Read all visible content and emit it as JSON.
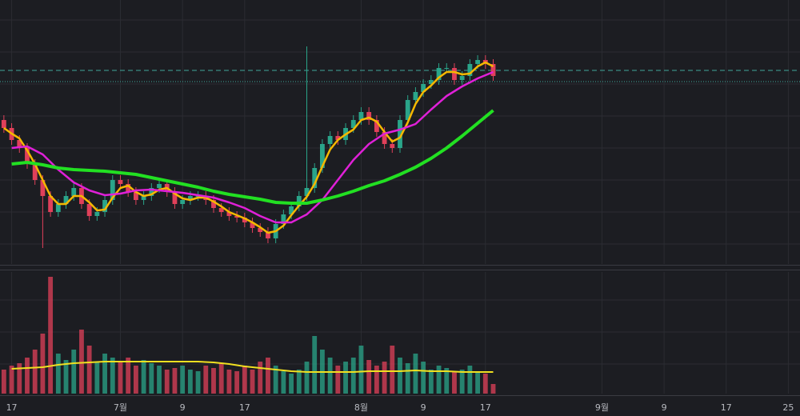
{
  "chart_data": [
    {
      "type": "candlestick",
      "grid": true,
      "up_color": "#2aa58a",
      "down_color": "#e0405a",
      "ylim": [
        0,
        330
      ],
      "grid_y": [
        305,
        265,
        225,
        185,
        145,
        105,
        65,
        25
      ],
      "x": [
        -1,
        0,
        1,
        2,
        3,
        4,
        5,
        6,
        7,
        8,
        9,
        10,
        11,
        12,
        13,
        14,
        15,
        16,
        17,
        18,
        19,
        20,
        21,
        22,
        23,
        24,
        25,
        26,
        27,
        28,
        29,
        30,
        31,
        32,
        33,
        34,
        35,
        36,
        37,
        38,
        39,
        40,
        41,
        42,
        43,
        44,
        45,
        46,
        47,
        48,
        49,
        50,
        51,
        52,
        53,
        54,
        55,
        56,
        57,
        58,
        59,
        60,
        61,
        62
      ],
      "open": [
        180,
        170,
        155,
        145,
        125,
        105,
        85,
        65,
        75,
        85,
        95,
        75,
        60,
        65,
        80,
        105,
        100,
        90,
        80,
        85,
        95,
        100,
        90,
        75,
        80,
        85,
        85,
        80,
        70,
        65,
        60,
        58,
        52,
        45,
        40,
        32,
        50,
        62,
        72,
        85,
        95,
        120,
        150,
        160,
        155,
        170,
        180,
        190,
        180,
        165,
        150,
        145,
        180,
        205,
        215,
        225,
        230,
        245,
        245,
        230,
        235,
        250,
        255,
        250
      ],
      "high": [
        186,
        176,
        161,
        151,
        131,
        111,
        91,
        81,
        91,
        101,
        101,
        81,
        71,
        86,
        111,
        111,
        106,
        96,
        91,
        101,
        106,
        106,
        96,
        86,
        91,
        91,
        91,
        86,
        76,
        71,
        66,
        64,
        58,
        51,
        46,
        56,
        68,
        78,
        91,
        272,
        126,
        156,
        166,
        166,
        176,
        186,
        196,
        196,
        186,
        171,
        156,
        186,
        211,
        221,
        231,
        236,
        251,
        251,
        251,
        241,
        256,
        261,
        261,
        256
      ],
      "low": [
        164,
        149,
        139,
        119,
        99,
        20,
        59,
        59,
        69,
        79,
        69,
        54,
        54,
        59,
        74,
        94,
        84,
        74,
        74,
        79,
        89,
        84,
        69,
        69,
        74,
        79,
        74,
        64,
        59,
        54,
        52,
        46,
        39,
        34,
        26,
        26,
        44,
        56,
        66,
        79,
        89,
        114,
        144,
        149,
        149,
        164,
        174,
        174,
        159,
        144,
        139,
        139,
        174,
        199,
        209,
        219,
        224,
        239,
        224,
        224,
        229,
        244,
        244,
        229
      ],
      "close": [
        170,
        155,
        145,
        125,
        105,
        85,
        65,
        75,
        85,
        95,
        75,
        60,
        65,
        80,
        105,
        100,
        90,
        80,
        85,
        95,
        100,
        90,
        75,
        80,
        85,
        85,
        80,
        70,
        65,
        60,
        58,
        52,
        45,
        40,
        32,
        50,
        62,
        72,
        85,
        95,
        120,
        150,
        160,
        155,
        170,
        180,
        190,
        180,
        165,
        150,
        145,
        180,
        205,
        215,
        225,
        230,
        245,
        245,
        230,
        235,
        250,
        255,
        250,
        235
      ],
      "lines": [
        {
          "color": "#f5b800",
          "width": 2.5,
          "x": [
            -1,
            0,
            1,
            2,
            3,
            4,
            5,
            6,
            7,
            8,
            9,
            10,
            11,
            12,
            13,
            14,
            15,
            16,
            17,
            18,
            19,
            20,
            21,
            22,
            23,
            24,
            25,
            26,
            27,
            28,
            29,
            30,
            31,
            32,
            33,
            34,
            35,
            36,
            37,
            38,
            39,
            40,
            41,
            42,
            43,
            44,
            45,
            46,
            47,
            48,
            49,
            50,
            51,
            52,
            53,
            54,
            55,
            56,
            57,
            58,
            59,
            60,
            61,
            62
          ],
          "values": [
            170,
            163,
            157,
            142,
            125,
            105,
            85,
            75,
            75,
            85,
            85,
            77,
            67,
            68,
            83,
            95,
            98,
            90,
            85,
            87,
            93,
            95,
            88,
            82,
            80,
            83,
            83,
            78,
            72,
            65,
            61,
            57,
            52,
            46,
            39,
            41,
            48,
            61,
            73,
            84,
            100,
            122,
            143,
            155,
            162,
            168,
            180,
            183,
            178,
            165,
            153,
            158,
            177,
            200,
            215,
            223,
            233,
            240,
            240,
            237,
            238,
            247,
            252,
            247
          ]
        },
        {
          "color": "#e020d8",
          "width": 2.5,
          "x": [
            0,
            2,
            4,
            6,
            8,
            10,
            12,
            14,
            16,
            18,
            20,
            22,
            24,
            26,
            28,
            30,
            32,
            34,
            36,
            38,
            40,
            42,
            44,
            46,
            48,
            50,
            52,
            54,
            56,
            58,
            60,
            62
          ],
          "values": [
            145,
            147,
            137,
            118,
            102,
            92,
            86,
            88,
            92,
            93,
            91,
            89,
            86,
            83,
            77,
            70,
            60,
            52,
            52,
            62,
            80,
            105,
            130,
            150,
            163,
            168,
            175,
            193,
            210,
            222,
            232,
            240
          ]
        },
        {
          "color": "#22e022",
          "width": 4,
          "x": [
            0,
            2,
            4,
            6,
            8,
            10,
            12,
            14,
            16,
            18,
            20,
            22,
            24,
            26,
            28,
            30,
            32,
            34,
            36,
            38,
            40,
            42,
            44,
            46,
            48,
            50,
            52,
            54,
            56,
            58,
            60,
            62
          ],
          "values": [
            125,
            127,
            124,
            120,
            118,
            117,
            116,
            114,
            112,
            108,
            104,
            100,
            96,
            91,
            87,
            84,
            81,
            77,
            76,
            76,
            80,
            85,
            91,
            98,
            104,
            112,
            121,
            132,
            145,
            160,
            176,
            192
          ]
        }
      ],
      "hlines": [
        {
          "value": 242,
          "color": "#3fa89a",
          "dash": "6 4"
        },
        {
          "value": 228,
          "color": "#3fa89a",
          "dash": "1 2"
        }
      ]
    },
    {
      "type": "bar",
      "grid": true,
      "ylim": [
        0,
        152
      ],
      "xlim": [
        -1.5,
        101.5
      ],
      "grid_y": [
        117,
        77,
        37
      ],
      "xticks": [
        {
          "value": 0,
          "label": "17"
        },
        {
          "value": 14,
          "label": "7월"
        },
        {
          "value": 22,
          "label": "9"
        },
        {
          "value": 30,
          "label": "17"
        },
        {
          "value": 45,
          "label": "8월"
        },
        {
          "value": 53,
          "label": "9"
        },
        {
          "value": 61,
          "label": "17"
        },
        {
          "value": 76,
          "label": "9월"
        },
        {
          "value": 84,
          "label": "9"
        },
        {
          "value": 92,
          "label": "17"
        },
        {
          "value": 100,
          "label": "25"
        }
      ],
      "values": [
        30,
        35,
        38,
        45,
        55,
        75,
        146,
        50,
        42,
        55,
        80,
        60,
        40,
        50,
        45,
        40,
        45,
        35,
        42,
        38,
        35,
        30,
        32,
        35,
        30,
        28,
        35,
        32,
        38,
        30,
        28,
        35,
        30,
        40,
        45,
        35,
        28,
        25,
        30,
        40,
        72,
        55,
        45,
        35,
        40,
        45,
        60,
        42,
        35,
        40,
        60,
        45,
        38,
        50,
        40,
        30,
        35,
        32,
        28,
        30,
        35,
        28,
        25,
        12
      ],
      "line": {
        "color": "#f0e020",
        "width": 2,
        "x": [
          0,
          2,
          4,
          6,
          8,
          10,
          12,
          14,
          16,
          18,
          20,
          22,
          24,
          26,
          28,
          30,
          32,
          34,
          36,
          38,
          40,
          42,
          44,
          46,
          48,
          50,
          52,
          54,
          56,
          58,
          60,
          62
        ],
        "values": [
          31,
          32,
          33,
          36,
          38,
          39,
          40,
          40,
          40,
          40,
          40,
          40,
          40,
          39,
          37,
          34,
          32,
          30,
          28,
          27,
          27,
          27,
          27,
          28,
          28,
          28,
          29,
          28,
          28,
          27,
          27,
          27
        ]
      }
    }
  ]
}
